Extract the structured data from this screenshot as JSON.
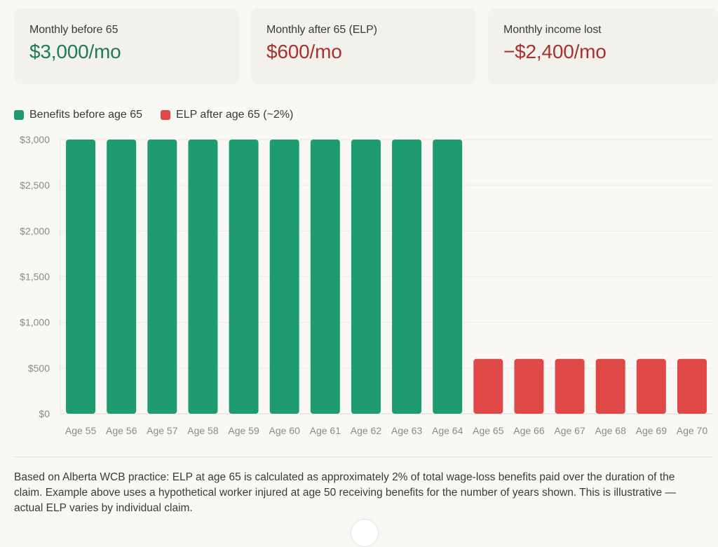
{
  "cards": [
    {
      "label": "Monthly before 65",
      "value": "$3,000/mo",
      "color": "#1f7a5a"
    },
    {
      "label": "Monthly after 65 (ELP)",
      "value": "$600/mo",
      "color": "#a8322f"
    },
    {
      "label": "Monthly income lost",
      "value": "−$2,400/mo",
      "color": "#a8322f"
    }
  ],
  "legend": [
    {
      "label": "Benefits before age 65",
      "color": "#1f9b72"
    },
    {
      "label": "ELP after age 65 (~2%)",
      "color": "#e04848"
    }
  ],
  "chart_data": {
    "type": "bar",
    "title": "",
    "xlabel": "",
    "ylabel": "",
    "ylim": [
      0,
      3000
    ],
    "yticks": [
      0,
      500,
      1000,
      1500,
      2000,
      2500,
      3000
    ],
    "ytick_labels": [
      "$0",
      "$500",
      "$1,000",
      "$1,500",
      "$2,000",
      "$2,500",
      "$3,000"
    ],
    "grid": true,
    "legend_position": "top-left",
    "categories": [
      "Age 55",
      "Age 56",
      "Age 57",
      "Age 58",
      "Age 59",
      "Age 60",
      "Age 61",
      "Age 62",
      "Age 63",
      "Age 64",
      "Age 65",
      "Age 66",
      "Age 67",
      "Age 68",
      "Age 69",
      "Age 70"
    ],
    "series": [
      {
        "name": "Benefits before age 65",
        "color": "#1f9b72",
        "values": [
          3000,
          3000,
          3000,
          3000,
          3000,
          3000,
          3000,
          3000,
          3000,
          3000,
          null,
          null,
          null,
          null,
          null,
          null
        ]
      },
      {
        "name": "ELP after age 65 (~2%)",
        "color": "#e04848",
        "values": [
          null,
          null,
          null,
          null,
          null,
          null,
          null,
          null,
          null,
          null,
          600,
          600,
          600,
          600,
          600,
          600
        ]
      }
    ]
  },
  "footnote": "Based on Alberta WCB practice: ELP at age 65 is calculated as approximately 2% of total wage-loss benefits paid over the duration of the claim. Example above uses a hypothetical worker injured at age 50 receiving benefits for the number of years shown. This is illustrative — actual ELP varies by individual claim."
}
